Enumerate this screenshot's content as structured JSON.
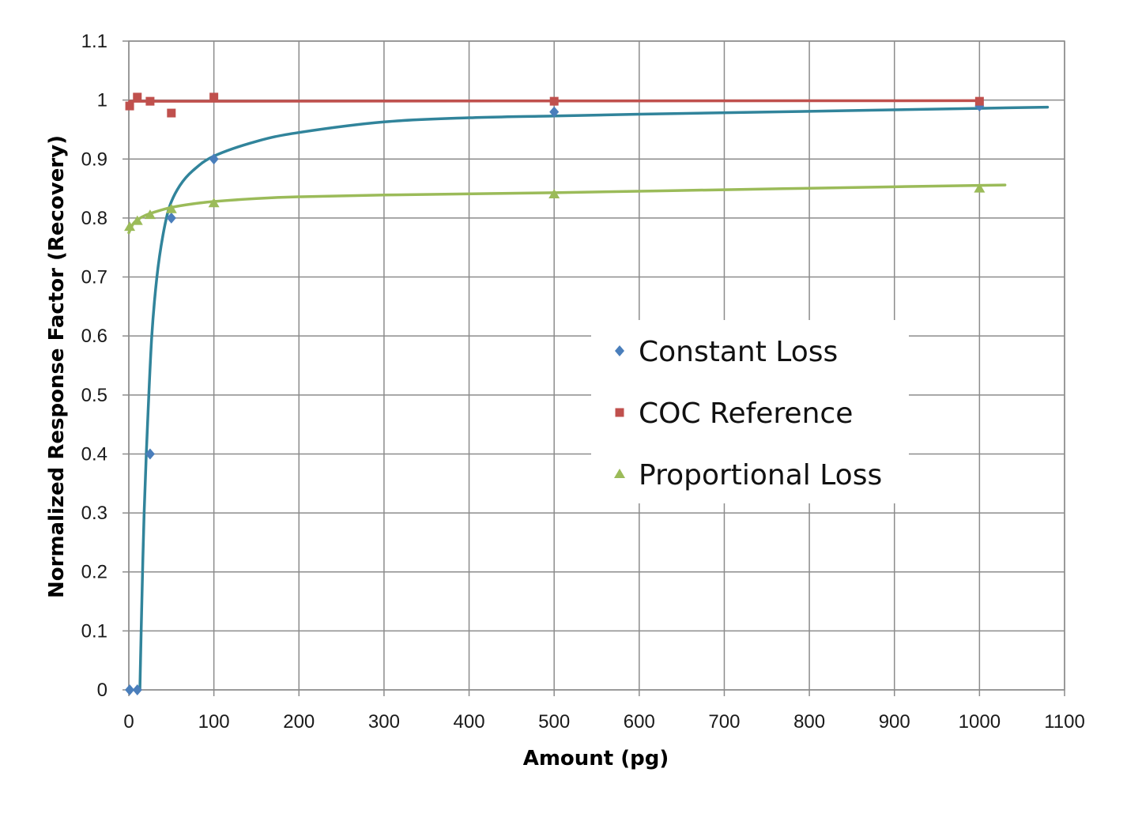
{
  "chart_data": {
    "type": "scatter",
    "title": "",
    "xlabel": "Amount (pg)",
    "ylabel": "Normalized Response Factor  (Recovery)",
    "xlim": [
      0,
      1100
    ],
    "ylim": [
      0,
      1.1
    ],
    "xticks": [
      0,
      100,
      200,
      300,
      400,
      500,
      600,
      700,
      800,
      900,
      1000,
      1100
    ],
    "yticks": [
      0,
      0.1,
      0.2,
      0.3,
      0.4,
      0.5,
      0.6,
      0.7,
      0.8,
      0.9,
      1,
      1.1
    ],
    "xtick_labels": [
      "0",
      "100",
      "200",
      "300",
      "400",
      "500",
      "600",
      "700",
      "800",
      "900",
      "1000",
      "1100"
    ],
    "ytick_labels": [
      "0",
      "0.1",
      "0.2",
      "0.3",
      "0.4",
      "0.5",
      "0.6",
      "0.7",
      "0.8",
      "0.9",
      "1",
      "1.1"
    ],
    "grid": true,
    "legend_position": "right-center",
    "series": [
      {
        "name": "Constant Loss",
        "marker": "diamond",
        "color": "#4a7ebb",
        "trend_color": "#31849b",
        "x": [
          1,
          10,
          25,
          50,
          100,
          500,
          1000
        ],
        "y": [
          0,
          0,
          0.4,
          0.8,
          0.9,
          0.98,
          0.99
        ],
        "trendline": {
          "x": [
            13,
            15,
            18,
            22,
            27,
            33,
            40,
            48,
            60,
            75,
            100,
            150,
            200,
            300,
            400,
            500,
            600,
            800,
            1000,
            1080
          ],
          "y": [
            0.0,
            0.13,
            0.3,
            0.45,
            0.6,
            0.7,
            0.77,
            0.82,
            0.855,
            0.88,
            0.905,
            0.93,
            0.945,
            0.963,
            0.97,
            0.973,
            0.976,
            0.981,
            0.986,
            0.988
          ]
        }
      },
      {
        "name": "COC Reference",
        "marker": "square",
        "color": "#c0504d",
        "trend_color": "#c0504d",
        "x": [
          1,
          10,
          25,
          50,
          100,
          500,
          1000
        ],
        "y": [
          0.99,
          1.005,
          0.998,
          0.978,
          1.005,
          0.998,
          0.998
        ],
        "trendline": {
          "x": [
            1,
            1000
          ],
          "y": [
            0.998,
            0.999
          ]
        }
      },
      {
        "name": "Proportional Loss",
        "marker": "triangle",
        "color": "#9bbb59",
        "trend_color": "#9bbb59",
        "x": [
          1,
          10,
          25,
          50,
          100,
          500,
          1000
        ],
        "y": [
          0.785,
          0.795,
          0.805,
          0.815,
          0.825,
          0.84,
          0.85
        ],
        "trendline": {
          "x": [
            0,
            5,
            10,
            20,
            30,
            50,
            75,
            100,
            150,
            200,
            300,
            500,
            700,
            900,
            1030
          ],
          "y": [
            0.775,
            0.79,
            0.797,
            0.805,
            0.81,
            0.818,
            0.824,
            0.828,
            0.833,
            0.836,
            0.839,
            0.843,
            0.848,
            0.853,
            0.856
          ]
        }
      }
    ]
  }
}
